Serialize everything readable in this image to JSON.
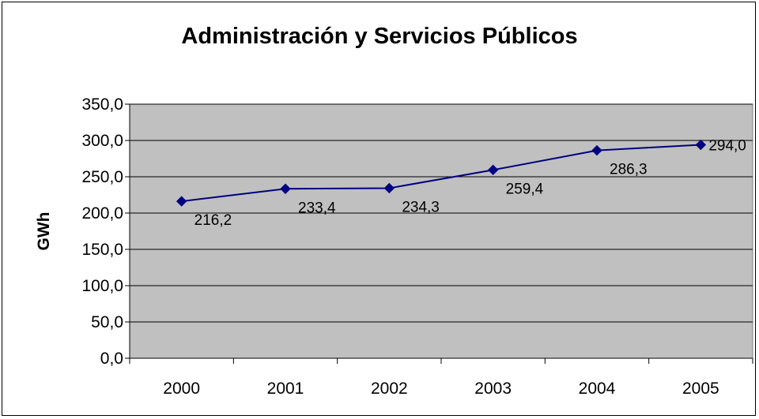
{
  "chart_data": {
    "type": "line",
    "title": "Administración y Servicios Públicos",
    "xlabel": "",
    "ylabel": "GWh",
    "categories": [
      "2000",
      "2001",
      "2002",
      "2003",
      "2004",
      "2005"
    ],
    "series": [
      {
        "values": [
          216.2,
          233.4,
          234.3,
          259.4,
          286.3,
          294.0
        ],
        "labels": [
          "216,2",
          "233,4",
          "234,3",
          "259,4",
          "286,3",
          "294,0"
        ]
      }
    ],
    "y_ticks": [
      "0,0",
      "50,0",
      "100,0",
      "150,0",
      "200,0",
      "250,0",
      "300,0",
      "350,0"
    ],
    "ylim": [
      0,
      350
    ],
    "grid": true,
    "legend": "none",
    "colors": {
      "plot_background": "#c0c0c0",
      "series_line": "#000080",
      "gridline": "#000000"
    },
    "marker": "diamond"
  }
}
